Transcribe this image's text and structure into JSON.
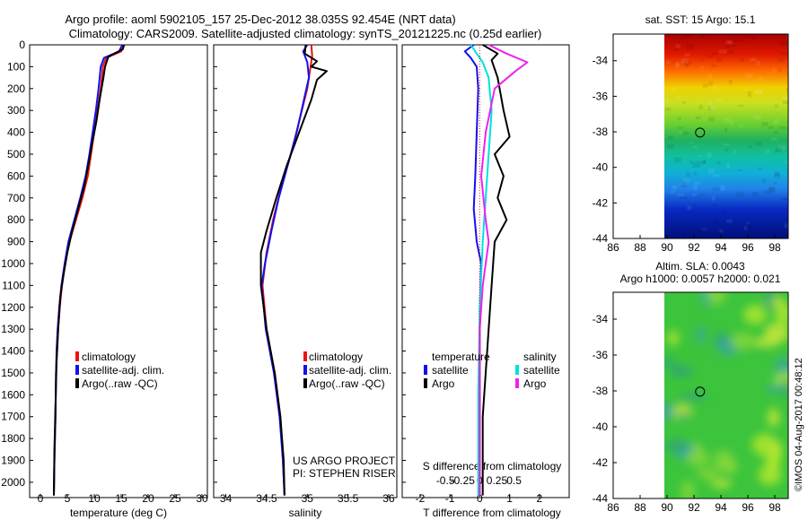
{
  "header": {
    "line1": "Argo profile: aoml 5902105_157 25-Dec-2012 38.035S 92.454E (NRT data)",
    "line2": "Climatology: CARS2009. Satellite-adjusted climatology: synTS_20121225.nc (0.25d earlier)"
  },
  "legend1": {
    "items": [
      "climatology",
      "satellite-adj. clim.",
      "Argo(..raw -QC)"
    ]
  },
  "legend3": {
    "temperature_title": "temperature",
    "salinity_title": "salinity",
    "t_items": [
      "satellite",
      "Argo"
    ],
    "s_items": [
      "satellite",
      "Argo"
    ]
  },
  "project": {
    "line1": "US ARGO PROJECT",
    "line2": "PI: STEPHEN RISER"
  },
  "map1_title": "sat. SST: 15 Argo: 15.1",
  "map2_title": {
    "line1": "Altim. SLA: 0.0043",
    "line2": "Argo h1000: 0.0057 h2000: 0.021"
  },
  "watermark": "©IMOS 04-Aug-2017 00:48:12",
  "colors": {
    "climatology": "#ee1111",
    "satellite": "#1111ee",
    "argo": "#000000",
    "sat_salinity": "#00e0e0",
    "argo_salinity": "#ee22ee"
  },
  "chart_data": [
    {
      "type": "line",
      "name": "temperature-profile",
      "xlabel": "temperature (deg C)",
      "ylabel": "",
      "xlim": [
        -2,
        31
      ],
      "ylim": [
        2070,
        0
      ],
      "xticks": [
        0,
        5,
        10,
        15,
        20,
        25,
        30
      ],
      "yticks": [
        0,
        100,
        200,
        300,
        400,
        500,
        600,
        700,
        800,
        900,
        1000,
        1100,
        1200,
        1300,
        1400,
        1500,
        1600,
        1700,
        1800,
        1900,
        2000
      ],
      "series": [
        {
          "name": "climatology",
          "color": "#ee1111",
          "points": [
            [
              15.6,
              0
            ],
            [
              15.0,
              30
            ],
            [
              12.2,
              60
            ],
            [
              11.6,
              100
            ],
            [
              11.2,
              200
            ],
            [
              10.6,
              300
            ],
            [
              10.0,
              400
            ],
            [
              9.4,
              500
            ],
            [
              8.8,
              600
            ],
            [
              7.8,
              700
            ],
            [
              6.6,
              800
            ],
            [
              5.4,
              900
            ],
            [
              4.6,
              1000
            ],
            [
              4.0,
              1100
            ],
            [
              3.6,
              1200
            ],
            [
              3.3,
              1300
            ],
            [
              3.1,
              1400
            ],
            [
              2.9,
              1500
            ],
            [
              2.8,
              1700
            ],
            [
              2.6,
              1900
            ],
            [
              2.5,
              2060
            ]
          ]
        },
        {
          "name": "satellite-adj. clim.",
          "color": "#1111ee",
          "points": [
            [
              15.2,
              0
            ],
            [
              14.6,
              30
            ],
            [
              11.8,
              60
            ],
            [
              11.2,
              100
            ],
            [
              10.8,
              200
            ],
            [
              10.3,
              300
            ],
            [
              9.7,
              400
            ],
            [
              9.1,
              500
            ],
            [
              8.4,
              600
            ],
            [
              7.4,
              700
            ],
            [
              6.3,
              800
            ],
            [
              5.2,
              900
            ],
            [
              4.5,
              1000
            ],
            [
              3.9,
              1100
            ],
            [
              3.5,
              1200
            ],
            [
              3.2,
              1300
            ],
            [
              3.0,
              1400
            ],
            [
              2.9,
              1500
            ],
            [
              2.8,
              1700
            ],
            [
              2.6,
              1900
            ],
            [
              2.5,
              2060
            ]
          ]
        },
        {
          "name": "Argo(..raw -QC)",
          "color": "#000000",
          "points": [
            [
              15.5,
              0
            ],
            [
              15.3,
              20
            ],
            [
              12.6,
              55
            ],
            [
              12.0,
              100
            ],
            [
              11.7,
              150
            ],
            [
              11.0,
              250
            ],
            [
              10.4,
              350
            ],
            [
              9.6,
              450
            ],
            [
              8.9,
              550
            ],
            [
              8.1,
              650
            ],
            [
              7.0,
              750
            ],
            [
              5.9,
              850
            ],
            [
              5.0,
              950
            ],
            [
              4.3,
              1050
            ],
            [
              3.7,
              1150
            ],
            [
              3.3,
              1300
            ],
            [
              3.0,
              1450
            ],
            [
              2.8,
              1650
            ],
            [
              2.6,
              1850
            ],
            [
              2.5,
              2060
            ]
          ]
        }
      ]
    },
    {
      "type": "line",
      "name": "salinity-profile",
      "xlabel": "salinity",
      "xlim": [
        33.85,
        36.1
      ],
      "ylim": [
        2070,
        0
      ],
      "xticks": [
        34,
        34.5,
        35,
        35.5,
        36
      ],
      "series": [
        {
          "name": "climatology",
          "color": "#ee1111",
          "points": [
            [
              35.05,
              0
            ],
            [
              35.06,
              50
            ],
            [
              35.04,
              100
            ],
            [
              35.0,
              200
            ],
            [
              34.9,
              350
            ],
            [
              34.8,
              500
            ],
            [
              34.68,
              650
            ],
            [
              34.58,
              800
            ],
            [
              34.5,
              950
            ],
            [
              34.45,
              1100
            ],
            [
              34.5,
              1300
            ],
            [
              34.6,
              1500
            ],
            [
              34.67,
              1700
            ],
            [
              34.7,
              1900
            ],
            [
              34.72,
              2060
            ]
          ]
        },
        {
          "name": "satellite-adj. clim.",
          "color": "#1111ee",
          "points": [
            [
              35.0,
              0
            ],
            [
              34.95,
              30
            ],
            [
              35.0,
              80
            ],
            [
              35.02,
              150
            ],
            [
              34.96,
              250
            ],
            [
              34.87,
              400
            ],
            [
              34.76,
              550
            ],
            [
              34.65,
              700
            ],
            [
              34.56,
              850
            ],
            [
              34.48,
              1000
            ],
            [
              34.44,
              1100
            ],
            [
              34.49,
              1300
            ],
            [
              34.59,
              1500
            ],
            [
              34.66,
              1700
            ],
            [
              34.7,
              1900
            ],
            [
              34.72,
              2060
            ]
          ]
        },
        {
          "name": "Argo(..raw -QC)",
          "color": "#000000",
          "points": [
            [
              34.98,
              0
            ],
            [
              34.97,
              40
            ],
            [
              35.12,
              75
            ],
            [
              35.05,
              100
            ],
            [
              35.24,
              120
            ],
            [
              35.12,
              160
            ],
            [
              35.05,
              250
            ],
            [
              34.9,
              400
            ],
            [
              34.75,
              550
            ],
            [
              34.62,
              700
            ],
            [
              34.5,
              850
            ],
            [
              34.43,
              950
            ],
            [
              34.43,
              1100
            ],
            [
              34.5,
              1300
            ],
            [
              34.6,
              1500
            ],
            [
              34.67,
              1700
            ],
            [
              34.71,
              1900
            ],
            [
              34.72,
              2060
            ]
          ]
        }
      ]
    },
    {
      "type": "line",
      "name": "difference-from-climatology",
      "xlabel": "T difference from climatology",
      "x2label": "S difference from climatology",
      "xlim": [
        -2.6,
        3
      ],
      "ylim": [
        2070,
        0
      ],
      "xticks": [
        -2,
        -1,
        0,
        1,
        2
      ],
      "x2ticks": [
        -0.5,
        -0.25,
        0,
        0.25,
        0.5
      ],
      "x2ticklabels": [
        "-0.5",
        "-0.25",
        "0",
        "0.25",
        "0.5"
      ],
      "series": [
        {
          "name": "temperature satellite",
          "color": "#1111ee",
          "points": [
            [
              -0.2,
              0
            ],
            [
              -0.5,
              30
            ],
            [
              -0.3,
              60
            ],
            [
              -0.1,
              100
            ],
            [
              -0.05,
              200
            ],
            [
              -0.1,
              400
            ],
            [
              -0.15,
              600
            ],
            [
              -0.2,
              750
            ],
            [
              -0.1,
              900
            ],
            [
              0.05,
              1000
            ],
            [
              0.0,
              1200
            ],
            [
              0.0,
              1500
            ],
            [
              0.0,
              2060
            ]
          ]
        },
        {
          "name": "temperature Argo",
          "color": "#000000",
          "points": [
            [
              0.1,
              0
            ],
            [
              0.6,
              40
            ],
            [
              0.4,
              70
            ],
            [
              0.6,
              150
            ],
            [
              0.8,
              300
            ],
            [
              1.0,
              420
            ],
            [
              0.5,
              500
            ],
            [
              0.8,
              600
            ],
            [
              0.6,
              700
            ],
            [
              0.9,
              800
            ],
            [
              0.5,
              900
            ],
            [
              0.4,
              1100
            ],
            [
              0.3,
              1300
            ],
            [
              0.2,
              1500
            ],
            [
              0.1,
              1700
            ],
            [
              0.1,
              2060
            ]
          ]
        },
        {
          "name": "salinity satellite",
          "color": "#00e0e0",
          "points": [
            [
              -0.3,
              0
            ],
            [
              -0.1,
              40
            ],
            [
              0.1,
              80
            ],
            [
              0.3,
              150
            ],
            [
              0.4,
              300
            ],
            [
              0.3,
              500
            ],
            [
              0.2,
              700
            ],
            [
              0.1,
              900
            ],
            [
              0.0,
              1200
            ],
            [
              -0.05,
              1600
            ],
            [
              -0.05,
              2060
            ]
          ]
        },
        {
          "name": "salinity Argo",
          "color": "#ee22ee",
          "points": [
            [
              0.3,
              0
            ],
            [
              0.9,
              40
            ],
            [
              1.6,
              80
            ],
            [
              1.2,
              120
            ],
            [
              0.5,
              200
            ],
            [
              0.2,
              400
            ],
            [
              0.05,
              600
            ],
            [
              0.2,
              800
            ],
            [
              0.3,
              900
            ],
            [
              0.1,
              1100
            ],
            [
              0.0,
              1300
            ],
            [
              0.0,
              1600
            ],
            [
              0.0,
              2060
            ]
          ]
        }
      ]
    },
    {
      "type": "heatmap",
      "name": "sst-map",
      "title": "sat. SST: 15 Argo: 15.1",
      "xlim": [
        86,
        99
      ],
      "ylim": [
        -44,
        -32.5
      ],
      "xticks": [
        86,
        88,
        90,
        92,
        94,
        96,
        98
      ],
      "yticks": [
        -44,
        -42,
        -40,
        -38,
        -36,
        -34
      ],
      "data_lon_range": [
        90,
        99
      ],
      "profile_location": [
        92.45,
        -38.04
      ]
    },
    {
      "type": "heatmap",
      "name": "sla-map",
      "title": "Altim. SLA: 0.0043",
      "xlim": [
        86,
        99
      ],
      "ylim": [
        -44,
        -32.5
      ],
      "xticks": [
        86,
        88,
        90,
        92,
        94,
        96,
        98
      ],
      "yticks": [
        -44,
        -42,
        -40,
        -38,
        -36,
        -34
      ],
      "data_lon_range": [
        90,
        99
      ],
      "profile_location": [
        92.45,
        -38.04
      ]
    }
  ]
}
